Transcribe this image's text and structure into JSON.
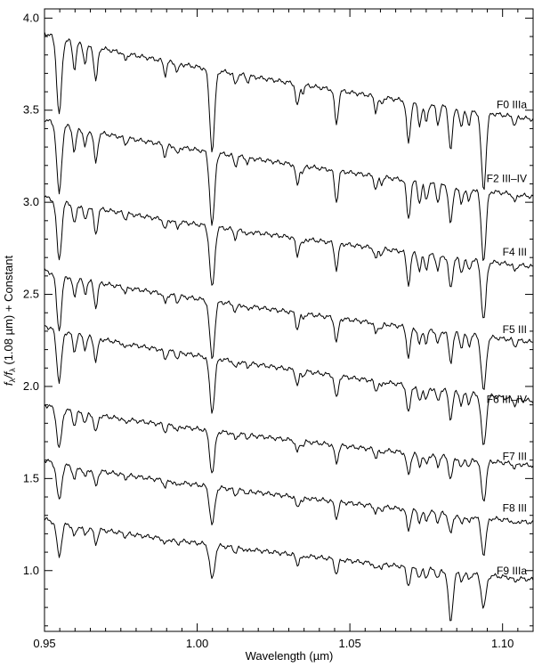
{
  "chart_data": {
    "type": "line",
    "title": "",
    "xlabel": "Wavelength (µm)",
    "ylabel": {
      "prefix": "f",
      "lambda": "λ",
      "slash": "/f",
      "suffix": " (1.08 µm) + Constant"
    },
    "xlim": [
      0.95,
      1.11
    ],
    "ylim": [
      0.67,
      4.05
    ],
    "x_major_ticks": [
      0.95,
      1.0,
      1.05,
      1.1
    ],
    "x_tick_labels": [
      "0.95",
      "1.00",
      "1.05",
      "1.10"
    ],
    "y_major_ticks": [
      1.0,
      1.5,
      2.0,
      2.5,
      3.0,
      3.5,
      4.0
    ],
    "y_tick_labels": [
      "1.0",
      "1.5",
      "2.0",
      "2.5",
      "3.0",
      "3.5",
      "4.0"
    ],
    "grid": false,
    "absorption_lines": [
      {
        "x": 0.9548,
        "depth": 1.0
      },
      {
        "x": 0.9598,
        "depth": 0.35
      },
      {
        "x": 0.9633,
        "depth": 0.25
      },
      {
        "x": 0.9668,
        "depth": 0.45
      },
      {
        "x": 0.9765,
        "depth": 0.1
      },
      {
        "x": 0.9895,
        "depth": 0.18
      },
      {
        "x": 0.9935,
        "depth": 0.12
      },
      {
        "x": 1.0049,
        "depth": 1.05
      },
      {
        "x": 1.0125,
        "depth": 0.15
      },
      {
        "x": 1.0165,
        "depth": 0.08
      },
      {
        "x": 1.0328,
        "depth": 0.3
      },
      {
        "x": 1.0346,
        "depth": 0.1
      },
      {
        "x": 1.0456,
        "depth": 0.45
      },
      {
        "x": 1.0585,
        "depth": 0.2
      },
      {
        "x": 1.0603,
        "depth": 0.1
      },
      {
        "x": 1.0692,
        "depth": 0.55
      },
      {
        "x": 1.0728,
        "depth": 0.3
      },
      {
        "x": 1.075,
        "depth": 0.25
      },
      {
        "x": 1.0788,
        "depth": 0.25
      },
      {
        "x": 1.083,
        "depth": 0.55
      },
      {
        "x": 1.0865,
        "depth": 0.25
      },
      {
        "x": 1.089,
        "depth": 0.2
      },
      {
        "x": 1.0938,
        "depth": 1.0
      },
      {
        "x": 1.104,
        "depth": 0.12
      }
    ],
    "series": [
      {
        "name": "F0 IIIa",
        "offset": 3.0,
        "start": 3.92,
        "end": 3.45,
        "line_scale": 0.42,
        "label_y": 3.53,
        "extra_lines": []
      },
      {
        "name": "F2 III–IV",
        "offset": 2.5,
        "start": 3.45,
        "end": 3.03,
        "line_scale": 0.38,
        "label_y": 3.13,
        "extra_lines": []
      },
      {
        "name": "F4 III",
        "offset": 2.0,
        "start": 3.03,
        "end": 2.65,
        "line_scale": 0.32,
        "label_y": 2.73,
        "extra_lines": []
      },
      {
        "name": "F5 III",
        "offset": 1.5,
        "start": 2.63,
        "end": 2.24,
        "line_scale": 0.3,
        "label_y": 2.31,
        "extra_lines": []
      },
      {
        "name": "F6 III–IV",
        "offset": 1.0,
        "start": 2.33,
        "end": 1.92,
        "line_scale": 0.28,
        "label_y": 1.93,
        "extra_lines": []
      },
      {
        "name": "F7 III",
        "offset": 0.5,
        "start": 1.9,
        "end": 1.57,
        "line_scale": 0.22,
        "label_y": 1.62,
        "extra_lines": []
      },
      {
        "name": "F8 III",
        "offset": 0.0,
        "start": 1.6,
        "end": 1.26,
        "line_scale": 0.2,
        "label_y": 1.34,
        "extra_lines": []
      },
      {
        "name": "F9 IIIa",
        "offset": -0.5,
        "start": 1.28,
        "end": 0.95,
        "line_scale": 0.18,
        "label_y": 1.0,
        "extra_lines": [
          {
            "x": 1.083,
            "depth": 1.0
          }
        ]
      }
    ]
  }
}
